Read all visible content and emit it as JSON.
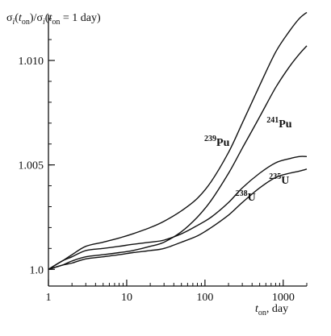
{
  "chart_data": {
    "type": "line",
    "x_scale": "log",
    "xlim": [
      1,
      2000
    ],
    "ylim": [
      0.9992,
      1.0122
    ],
    "grid": false,
    "y_axis_label": {
      "sigma": "σ",
      "i": "i",
      "t": "t",
      "on": "on",
      "mid": ")/",
      "eq": " = 1 day)"
    },
    "x_axis_label": {
      "t": "t",
      "on": "on",
      "tail": ", day"
    },
    "x_tick_labels": [
      {
        "value": 1,
        "label": "1"
      },
      {
        "value": 10,
        "label": "10"
      },
      {
        "value": 100,
        "label": "100"
      },
      {
        "value": 1000,
        "label": "1000"
      }
    ],
    "y_tick_labels": [
      {
        "value": 1.0,
        "label": "1.0"
      },
      {
        "value": 1.005,
        "label": "1.005"
      },
      {
        "value": 1.01,
        "label": "1.010"
      }
    ],
    "series": [
      {
        "name_sup": "239",
        "name_base": "Pu",
        "x": [
          1,
          1.5,
          2,
          3,
          5,
          8,
          12,
          20,
          30,
          50,
          80,
          120,
          200,
          300,
          500,
          800,
          1200,
          1600,
          2000
        ],
        "y": [
          1.0,
          1.0004,
          1.0007,
          1.0011,
          1.0013,
          1.0015,
          1.0017,
          1.002,
          1.0023,
          1.0028,
          1.0034,
          1.0042,
          1.0056,
          1.007,
          1.0088,
          1.0104,
          1.0114,
          1.012,
          1.0123
        ]
      },
      {
        "name_sup": "241",
        "name_base": "Pu",
        "x": [
          1,
          1.5,
          2,
          3,
          5,
          8,
          12,
          20,
          30,
          50,
          80,
          120,
          200,
          300,
          500,
          800,
          1200,
          1600,
          2000
        ],
        "y": [
          1.0,
          1.0002,
          1.0004,
          1.0006,
          1.0007,
          1.0008,
          1.0009,
          1.0011,
          1.0013,
          1.0018,
          1.0025,
          1.0033,
          1.0046,
          1.0058,
          1.0073,
          1.0087,
          1.0097,
          1.0103,
          1.0107
        ]
      },
      {
        "name_sup": "235",
        "name_base": "U",
        "x": [
          1,
          1.5,
          2,
          3,
          5,
          8,
          12,
          20,
          30,
          50,
          80,
          120,
          200,
          300,
          500,
          800,
          1200,
          1600,
          2000
        ],
        "y": [
          1.0,
          1.0004,
          1.0006,
          1.0009,
          1.001,
          1.0011,
          1.0012,
          1.0013,
          1.0014,
          1.0017,
          1.0021,
          1.0025,
          1.0032,
          1.0039,
          1.0046,
          1.0051,
          1.0053,
          1.0054,
          1.0054
        ]
      },
      {
        "name_sup": "238",
        "name_base": "U",
        "x": [
          1,
          1.5,
          2,
          3,
          5,
          8,
          12,
          20,
          30,
          50,
          80,
          120,
          200,
          300,
          500,
          800,
          1200,
          1600,
          2000
        ],
        "y": [
          1.0,
          1.0002,
          1.0003,
          1.0005,
          1.0006,
          1.0007,
          1.0008,
          1.0009,
          1.001,
          1.0013,
          1.0016,
          1.002,
          1.0026,
          1.0032,
          1.0039,
          1.0044,
          1.0046,
          1.0047,
          1.0048
        ]
      }
    ]
  }
}
